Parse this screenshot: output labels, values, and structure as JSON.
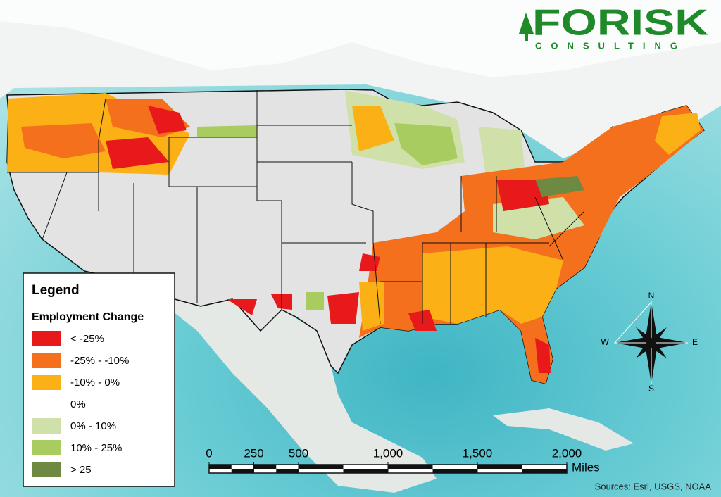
{
  "logo": {
    "name": "FORISK",
    "tagline": "CONSULTING"
  },
  "legend": {
    "title": "Legend",
    "subtitle": "Employment Change",
    "items": [
      {
        "label": "< -25%",
        "color": "#e8191b"
      },
      {
        "label": "-25% - -10%",
        "color": "#f5701c"
      },
      {
        "label": "-10% - 0%",
        "color": "#fbb115"
      },
      {
        "label": "0%",
        "color": "#ffffff"
      },
      {
        "label": "0% - 10%",
        "color": "#cfe0a8"
      },
      {
        "label": "10% - 25%",
        "color": "#a8cc60"
      },
      {
        "label": "> 25",
        "color": "#6e8a42"
      }
    ]
  },
  "compass": {
    "n": "N",
    "e": "E",
    "s": "S",
    "w": "W"
  },
  "scale": {
    "ticks": [
      0,
      250,
      500,
      {
        "value": 1000,
        "label": "1,000"
      },
      {
        "value": 1500,
        "label": "1,500"
      },
      {
        "value": 2000,
        "label": "2,000"
      }
    ],
    "unit": "Miles"
  },
  "source": "Sources: Esri, USGS, NOAA"
}
